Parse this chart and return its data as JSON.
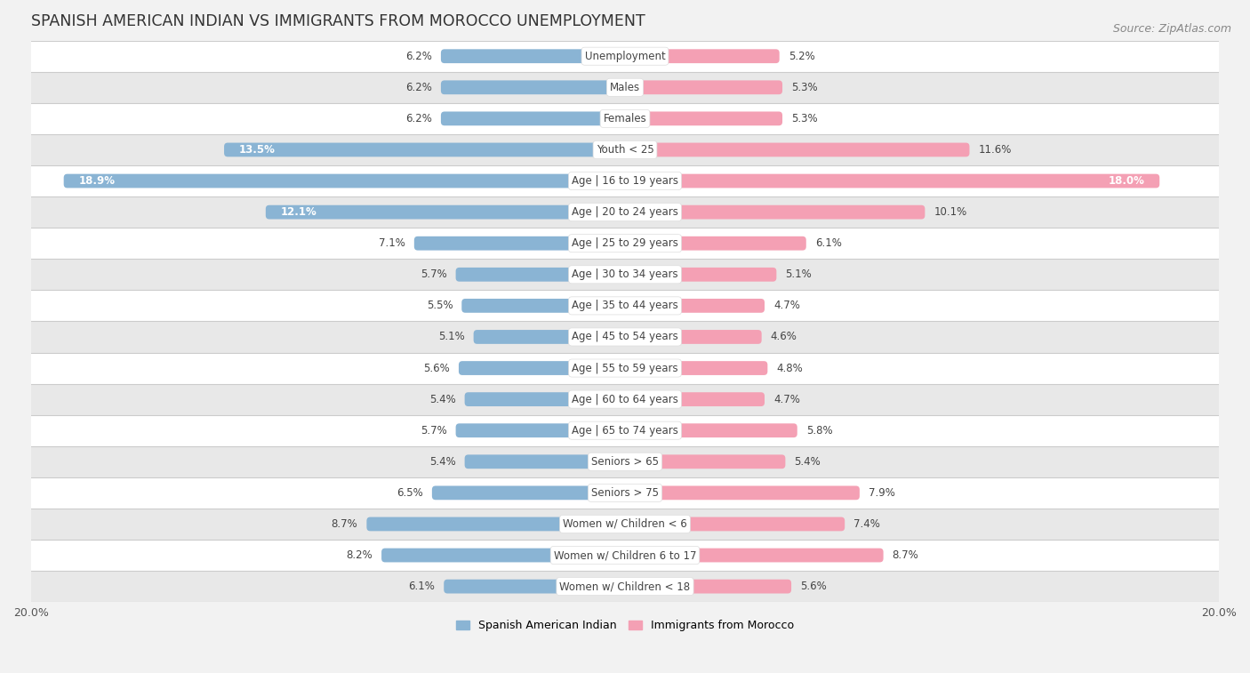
{
  "title": "SPANISH AMERICAN INDIAN VS IMMIGRANTS FROM MOROCCO UNEMPLOYMENT",
  "source": "Source: ZipAtlas.com",
  "categories": [
    "Unemployment",
    "Males",
    "Females",
    "Youth < 25",
    "Age | 16 to 19 years",
    "Age | 20 to 24 years",
    "Age | 25 to 29 years",
    "Age | 30 to 34 years",
    "Age | 35 to 44 years",
    "Age | 45 to 54 years",
    "Age | 55 to 59 years",
    "Age | 60 to 64 years",
    "Age | 65 to 74 years",
    "Seniors > 65",
    "Seniors > 75",
    "Women w/ Children < 6",
    "Women w/ Children 6 to 17",
    "Women w/ Children < 18"
  ],
  "left_values": [
    6.2,
    6.2,
    6.2,
    13.5,
    18.9,
    12.1,
    7.1,
    5.7,
    5.5,
    5.1,
    5.6,
    5.4,
    5.7,
    5.4,
    6.5,
    8.7,
    8.2,
    6.1
  ],
  "right_values": [
    5.2,
    5.3,
    5.3,
    11.6,
    18.0,
    10.1,
    6.1,
    5.1,
    4.7,
    4.6,
    4.8,
    4.7,
    5.8,
    5.4,
    7.9,
    7.4,
    8.7,
    5.6
  ],
  "left_color": "#8ab4d4",
  "right_color": "#f4a0b4",
  "left_label": "Spanish American Indian",
  "right_label": "Immigrants from Morocco",
  "axis_max": 20.0,
  "bg_color": "#f2f2f2",
  "row_color_even": "#ffffff",
  "row_color_odd": "#e8e8e8",
  "separator_color": "#cccccc",
  "label_pill_color": "#ffffff",
  "title_fontsize": 12.5,
  "source_fontsize": 9,
  "label_fontsize": 8.5,
  "value_fontsize": 8.5,
  "legend_fontsize": 9
}
